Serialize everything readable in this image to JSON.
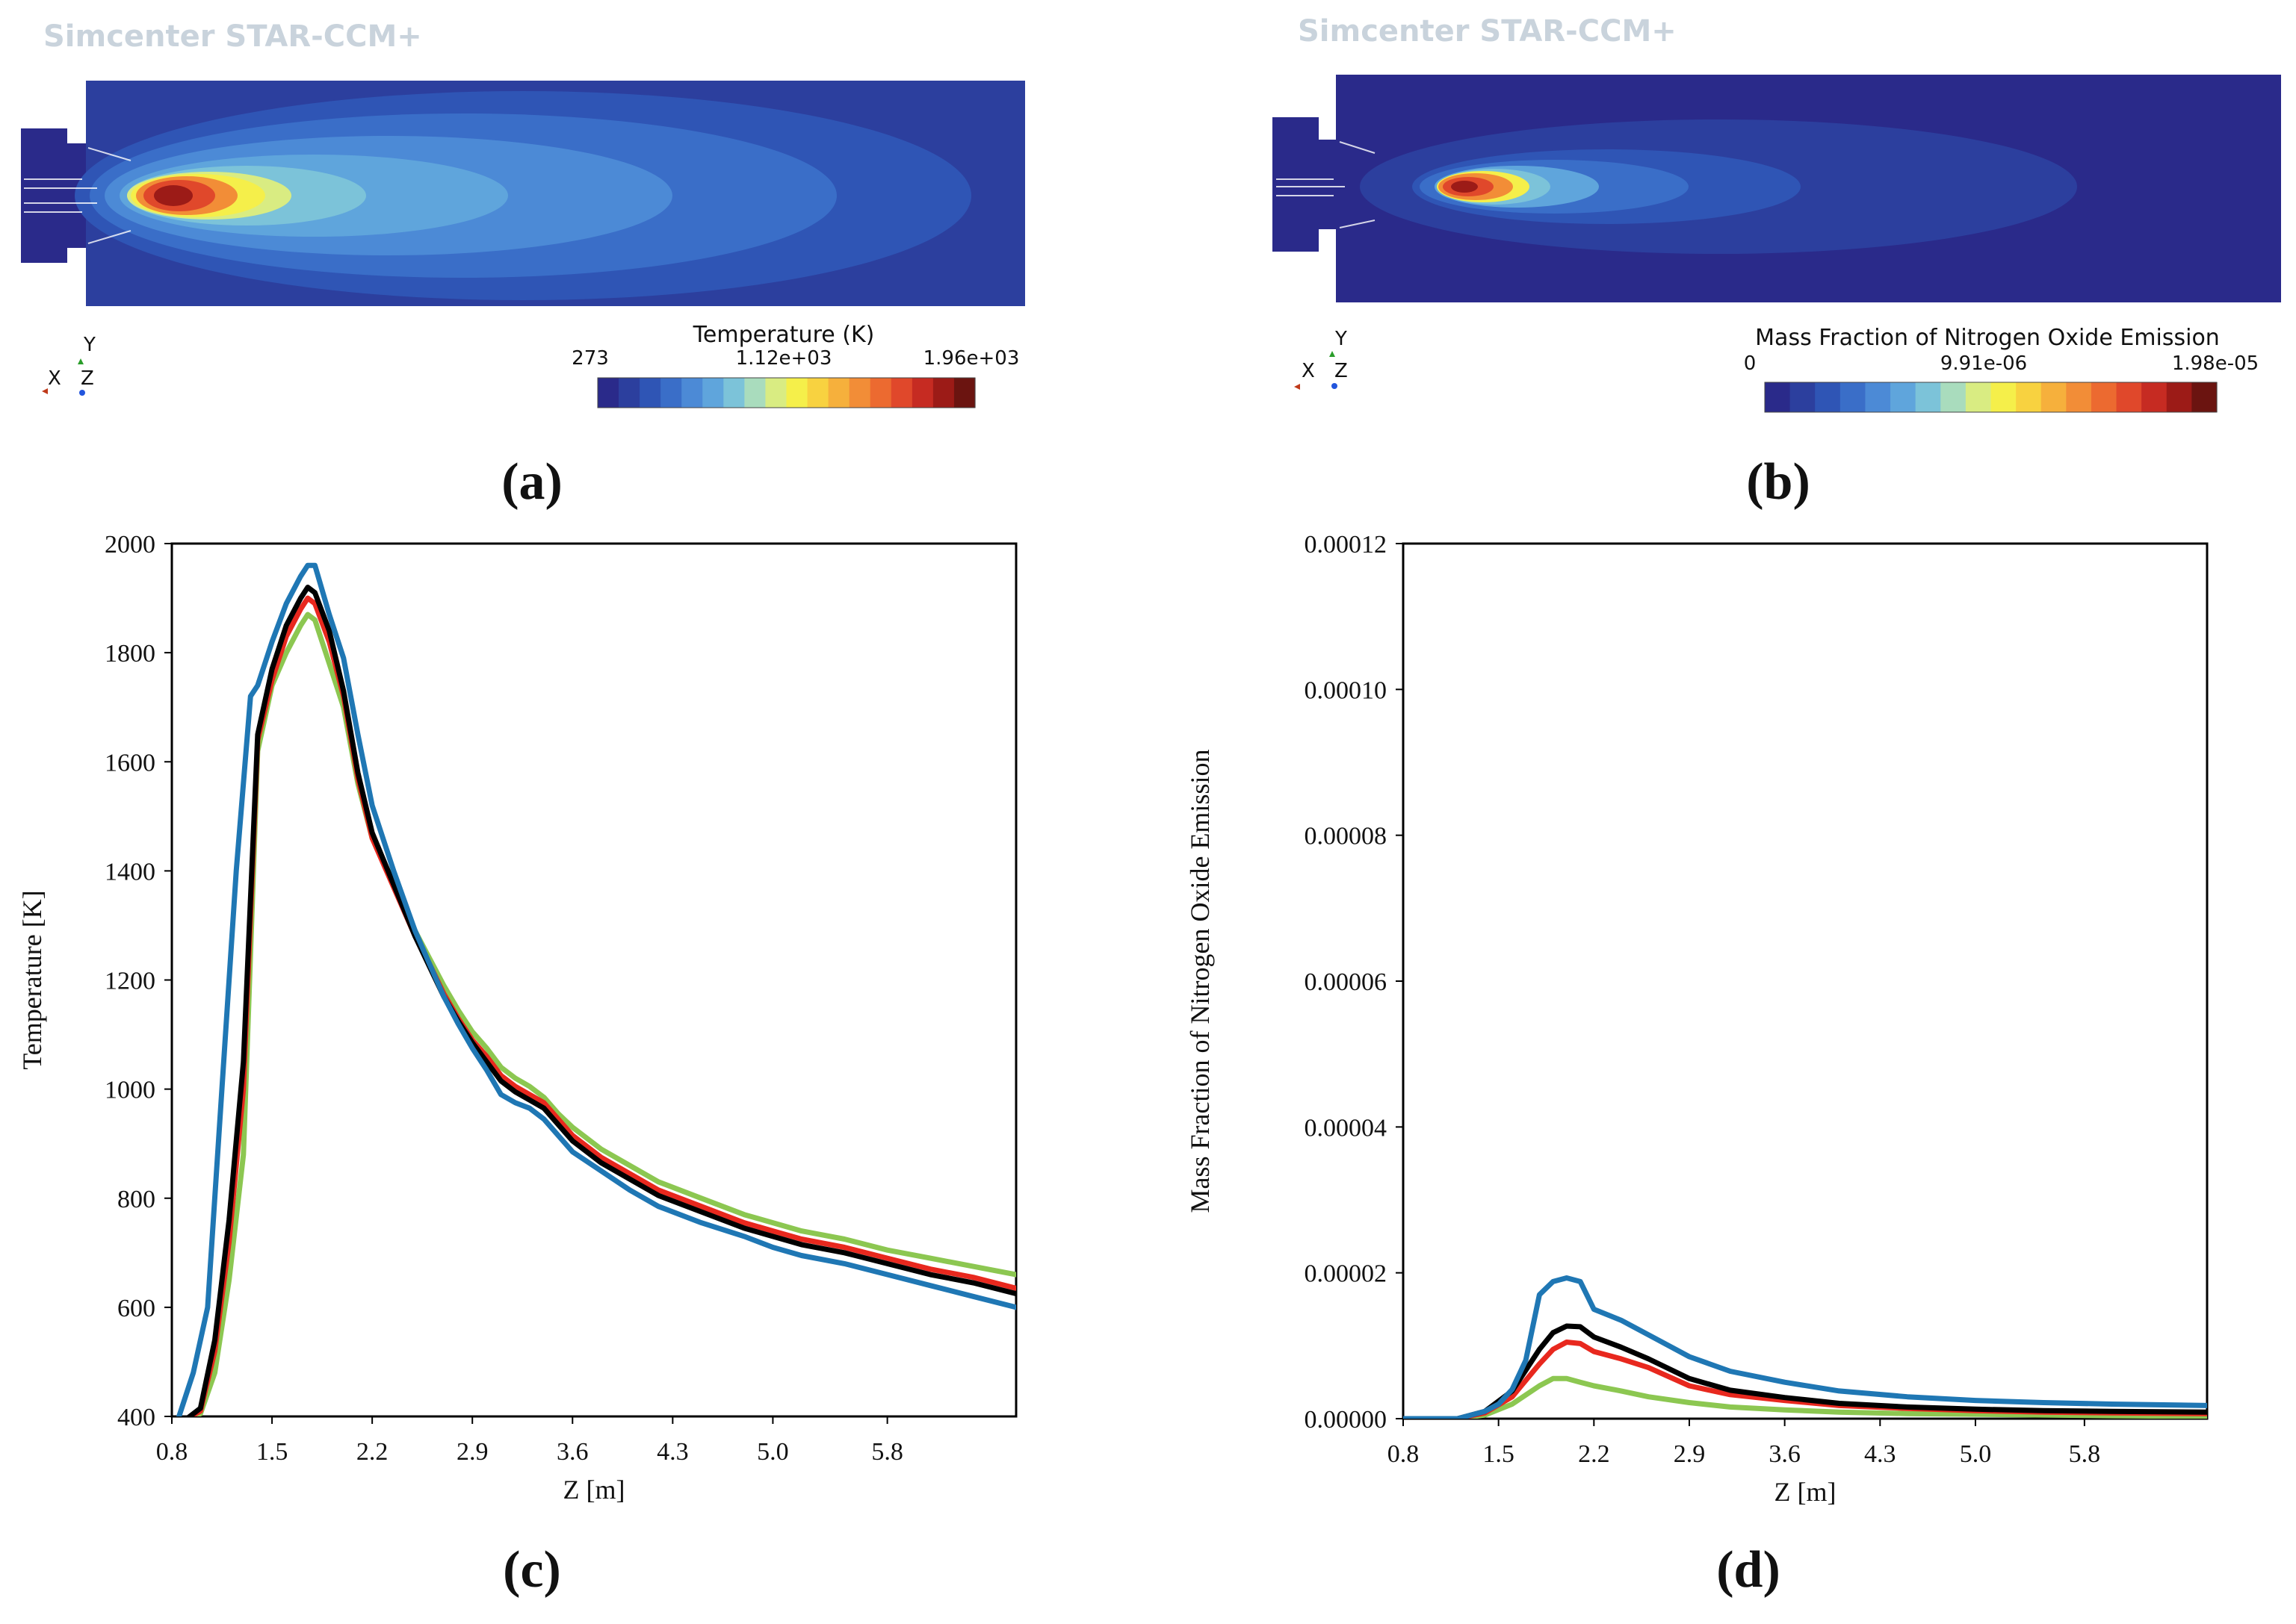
{
  "contour_a": {
    "brand": "Simcenter STAR-CCM+",
    "colorbar_title": "Temperature (K)",
    "colorbar_ticks": [
      "273",
      "1.12e+03",
      "1.96e+03"
    ],
    "axes": {
      "y": "Y",
      "x": "X",
      "z": "Z"
    },
    "panel_label": "(a)"
  },
  "contour_b": {
    "brand": "Simcenter STAR-CCM+",
    "colorbar_title": "Mass Fraction of Nitrogen Oxide Emission",
    "colorbar_ticks": [
      "0",
      "9.91e-06",
      "1.98e-05"
    ],
    "axes": {
      "y": "Y",
      "x": "X",
      "z": "Z"
    },
    "panel_label": "(b)"
  },
  "colormap": [
    "#2a2a8a",
    "#2c3f9e",
    "#2f55b5",
    "#3a6ec8",
    "#4c8ad6",
    "#5fa5dc",
    "#7cc3d9",
    "#a9dcbd",
    "#d9ec82",
    "#f5ef4a",
    "#f8d240",
    "#f6b03c",
    "#f28d37",
    "#ec6a30",
    "#e0482b",
    "#c62b22",
    "#9c1b17",
    "#6b1410"
  ],
  "panel_labels": {
    "c": "(c)",
    "d": "(d)"
  },
  "series_colors": {
    "blue": "#1f77b4",
    "red": "#e8281e",
    "black": "#000000",
    "green": "#8cc751"
  },
  "chart_data": [
    {
      "type": "line",
      "title": "",
      "xlabel": "Z [m]",
      "ylabel": "Temperature [K]",
      "xlim": [
        0.8,
        6.7
      ],
      "ylim": [
        400,
        2000
      ],
      "xticks": [
        "0.8",
        "1.5",
        "2.2",
        "2.9",
        "3.6",
        "4.3",
        "5.0",
        "5.8"
      ],
      "xtick_values": [
        0.8,
        1.5,
        2.2,
        2.9,
        3.6,
        4.3,
        5.0,
        5.8
      ],
      "yticks": [
        "400",
        "600",
        "800",
        "1000",
        "1200",
        "1400",
        "1600",
        "1800",
        "2000"
      ],
      "ytick_values": [
        400,
        600,
        800,
        1000,
        1200,
        1400,
        1600,
        1800,
        2000
      ],
      "series": [
        {
          "name": "green",
          "color": "#8cc751",
          "x": [
            0.9,
            1.0,
            1.1,
            1.2,
            1.3,
            1.4,
            1.5,
            1.6,
            1.7,
            1.75,
            1.8,
            1.9,
            2.0,
            2.1,
            2.2,
            2.35,
            2.5,
            2.6,
            2.7,
            2.8,
            2.9,
            3.0,
            3.1,
            3.2,
            3.3,
            3.4,
            3.5,
            3.6,
            3.8,
            4.0,
            4.2,
            4.5,
            4.8,
            5.0,
            5.2,
            5.5,
            5.8,
            6.1,
            6.4,
            6.7
          ],
          "values": [
            395,
            405,
            480,
            650,
            880,
            1620,
            1740,
            1800,
            1850,
            1870,
            1860,
            1780,
            1700,
            1560,
            1460,
            1380,
            1290,
            1240,
            1190,
            1145,
            1105,
            1075,
            1040,
            1020,
            1005,
            985,
            955,
            930,
            890,
            860,
            830,
            800,
            770,
            755,
            740,
            725,
            705,
            690,
            675,
            660
          ]
        },
        {
          "name": "red",
          "color": "#e8281e",
          "x": [
            0.9,
            1.0,
            1.1,
            1.2,
            1.3,
            1.4,
            1.5,
            1.6,
            1.7,
            1.75,
            1.8,
            1.9,
            2.0,
            2.1,
            2.2,
            2.35,
            2.5,
            2.6,
            2.7,
            2.8,
            2.9,
            3.0,
            3.1,
            3.2,
            3.3,
            3.4,
            3.5,
            3.6,
            3.8,
            4.0,
            4.2,
            4.5,
            4.8,
            5.0,
            5.2,
            5.5,
            5.8,
            6.1,
            6.4,
            6.7
          ],
          "values": [
            395,
            410,
            520,
            720,
            1000,
            1640,
            1750,
            1830,
            1880,
            1900,
            1890,
            1820,
            1720,
            1570,
            1460,
            1370,
            1280,
            1230,
            1175,
            1130,
            1090,
            1060,
            1025,
            1005,
            990,
            975,
            945,
            915,
            875,
            845,
            815,
            785,
            755,
            740,
            725,
            710,
            690,
            670,
            655,
            635
          ]
        },
        {
          "name": "black",
          "color": "#000000",
          "x": [
            0.9,
            1.0,
            1.1,
            1.2,
            1.3,
            1.4,
            1.5,
            1.6,
            1.7,
            1.75,
            1.8,
            1.9,
            2.0,
            2.1,
            2.2,
            2.35,
            2.5,
            2.6,
            2.7,
            2.8,
            2.9,
            3.0,
            3.1,
            3.2,
            3.3,
            3.4,
            3.5,
            3.6,
            3.8,
            4.0,
            4.2,
            4.5,
            4.8,
            5.0,
            5.2,
            5.5,
            5.8,
            6.1,
            6.4,
            6.7
          ],
          "values": [
            395,
            415,
            540,
            760,
            1050,
            1650,
            1770,
            1850,
            1900,
            1920,
            1910,
            1840,
            1730,
            1580,
            1470,
            1375,
            1280,
            1225,
            1170,
            1125,
            1085,
            1050,
            1015,
            995,
            980,
            965,
            935,
            905,
            865,
            835,
            805,
            775,
            745,
            730,
            715,
            700,
            680,
            660,
            645,
            625
          ]
        },
        {
          "name": "blue",
          "color": "#1f77b4",
          "x": [
            0.85,
            0.95,
            1.05,
            1.15,
            1.25,
            1.35,
            1.4,
            1.5,
            1.6,
            1.7,
            1.75,
            1.8,
            1.9,
            2.0,
            2.1,
            2.2,
            2.35,
            2.5,
            2.6,
            2.7,
            2.8,
            2.9,
            3.0,
            3.1,
            3.2,
            3.3,
            3.4,
            3.5,
            3.6,
            3.8,
            4.0,
            4.2,
            4.5,
            4.8,
            5.0,
            5.2,
            5.5,
            5.8,
            6.1,
            6.4,
            6.7
          ],
          "values": [
            400,
            480,
            600,
            1000,
            1400,
            1720,
            1740,
            1820,
            1890,
            1940,
            1960,
            1960,
            1870,
            1790,
            1650,
            1520,
            1400,
            1290,
            1230,
            1170,
            1120,
            1075,
            1035,
            990,
            975,
            965,
            945,
            915,
            885,
            850,
            815,
            785,
            755,
            730,
            710,
            695,
            680,
            660,
            640,
            620,
            600
          ]
        }
      ]
    },
    {
      "type": "line",
      "title": "",
      "xlabel": "Z [m]",
      "ylabel": "Mass Fraction of Nitrogen Oxide Emission",
      "xlim": [
        0.8,
        6.7
      ],
      "ylim": [
        0,
        0.00012
      ],
      "xticks": [
        "0.8",
        "1.5",
        "2.2",
        "2.9",
        "3.6",
        "4.3",
        "5.0",
        "5.8"
      ],
      "xtick_values": [
        0.8,
        1.5,
        2.2,
        2.9,
        3.6,
        4.3,
        5.0,
        5.8
      ],
      "yticks": [
        "0.00000",
        "0.00002",
        "0.00004",
        "0.00006",
        "0.00008",
        "0.00010",
        "0.00012"
      ],
      "ytick_values": [
        0,
        2e-05,
        4e-05,
        6e-05,
        8e-05,
        0.0001,
        0.00012
      ],
      "series": [
        {
          "name": "green",
          "color": "#8cc751",
          "x": [
            0.8,
            1.2,
            1.4,
            1.6,
            1.8,
            1.9,
            2.0,
            2.1,
            2.2,
            2.4,
            2.6,
            2.9,
            3.2,
            3.6,
            4.0,
            4.5,
            5.0,
            5.5,
            6.0,
            6.7
          ],
          "values": [
            0,
            0,
            5e-07,
            2e-06,
            4.5e-06,
            5.5e-06,
            5.5e-06,
            5e-06,
            4.5e-06,
            3.8e-06,
            3e-06,
            2.2e-06,
            1.6e-06,
            1.2e-06,
            9e-07,
            7e-07,
            6e-07,
            5e-07,
            4e-07,
            3e-07
          ]
        },
        {
          "name": "red",
          "color": "#e8281e",
          "x": [
            0.8,
            1.2,
            1.4,
            1.6,
            1.8,
            1.9,
            2.0,
            2.1,
            2.2,
            2.4,
            2.6,
            2.9,
            3.2,
            3.6,
            4.0,
            4.5,
            5.0,
            5.5,
            6.0,
            6.7
          ],
          "values": [
            0,
            0,
            8e-07,
            3e-06,
            7.5e-06,
            9.5e-06,
            1.05e-05,
            1.03e-05,
            9.2e-06,
            8.2e-06,
            7e-06,
            4.5e-06,
            3.3e-06,
            2.5e-06,
            1.8e-06,
            1.4e-06,
            1.1e-06,
            9e-07,
            8e-07,
            7e-07
          ]
        },
        {
          "name": "black",
          "color": "#000000",
          "x": [
            0.8,
            1.2,
            1.4,
            1.6,
            1.8,
            1.9,
            2.0,
            2.1,
            2.2,
            2.4,
            2.6,
            2.9,
            3.2,
            3.6,
            4.0,
            4.5,
            5.0,
            5.5,
            6.0,
            6.7
          ],
          "values": [
            0,
            0,
            1e-06,
            3.8e-06,
            9.5e-06,
            1.18e-05,
            1.27e-05,
            1.26e-05,
            1.12e-05,
            9.8e-06,
            8.2e-06,
            5.5e-06,
            3.9e-06,
            2.9e-06,
            2.1e-06,
            1.6e-06,
            1.3e-06,
            1.1e-06,
            1e-06,
            9e-07
          ]
        },
        {
          "name": "blue",
          "color": "#1f77b4",
          "x": [
            0.8,
            1.2,
            1.4,
            1.5,
            1.6,
            1.7,
            1.8,
            1.9,
            2.0,
            2.1,
            2.2,
            2.4,
            2.6,
            2.9,
            3.2,
            3.6,
            4.0,
            4.5,
            5.0,
            5.5,
            6.0,
            6.7
          ],
          "values": [
            0,
            0,
            1e-06,
            2e-06,
            4e-06,
            8e-06,
            1.7e-05,
            1.88e-05,
            1.93e-05,
            1.88e-05,
            1.5e-05,
            1.35e-05,
            1.15e-05,
            8.5e-06,
            6.5e-06,
            5e-06,
            3.8e-06,
            3e-06,
            2.5e-06,
            2.2e-06,
            2e-06,
            1.8e-06
          ]
        }
      ]
    }
  ]
}
